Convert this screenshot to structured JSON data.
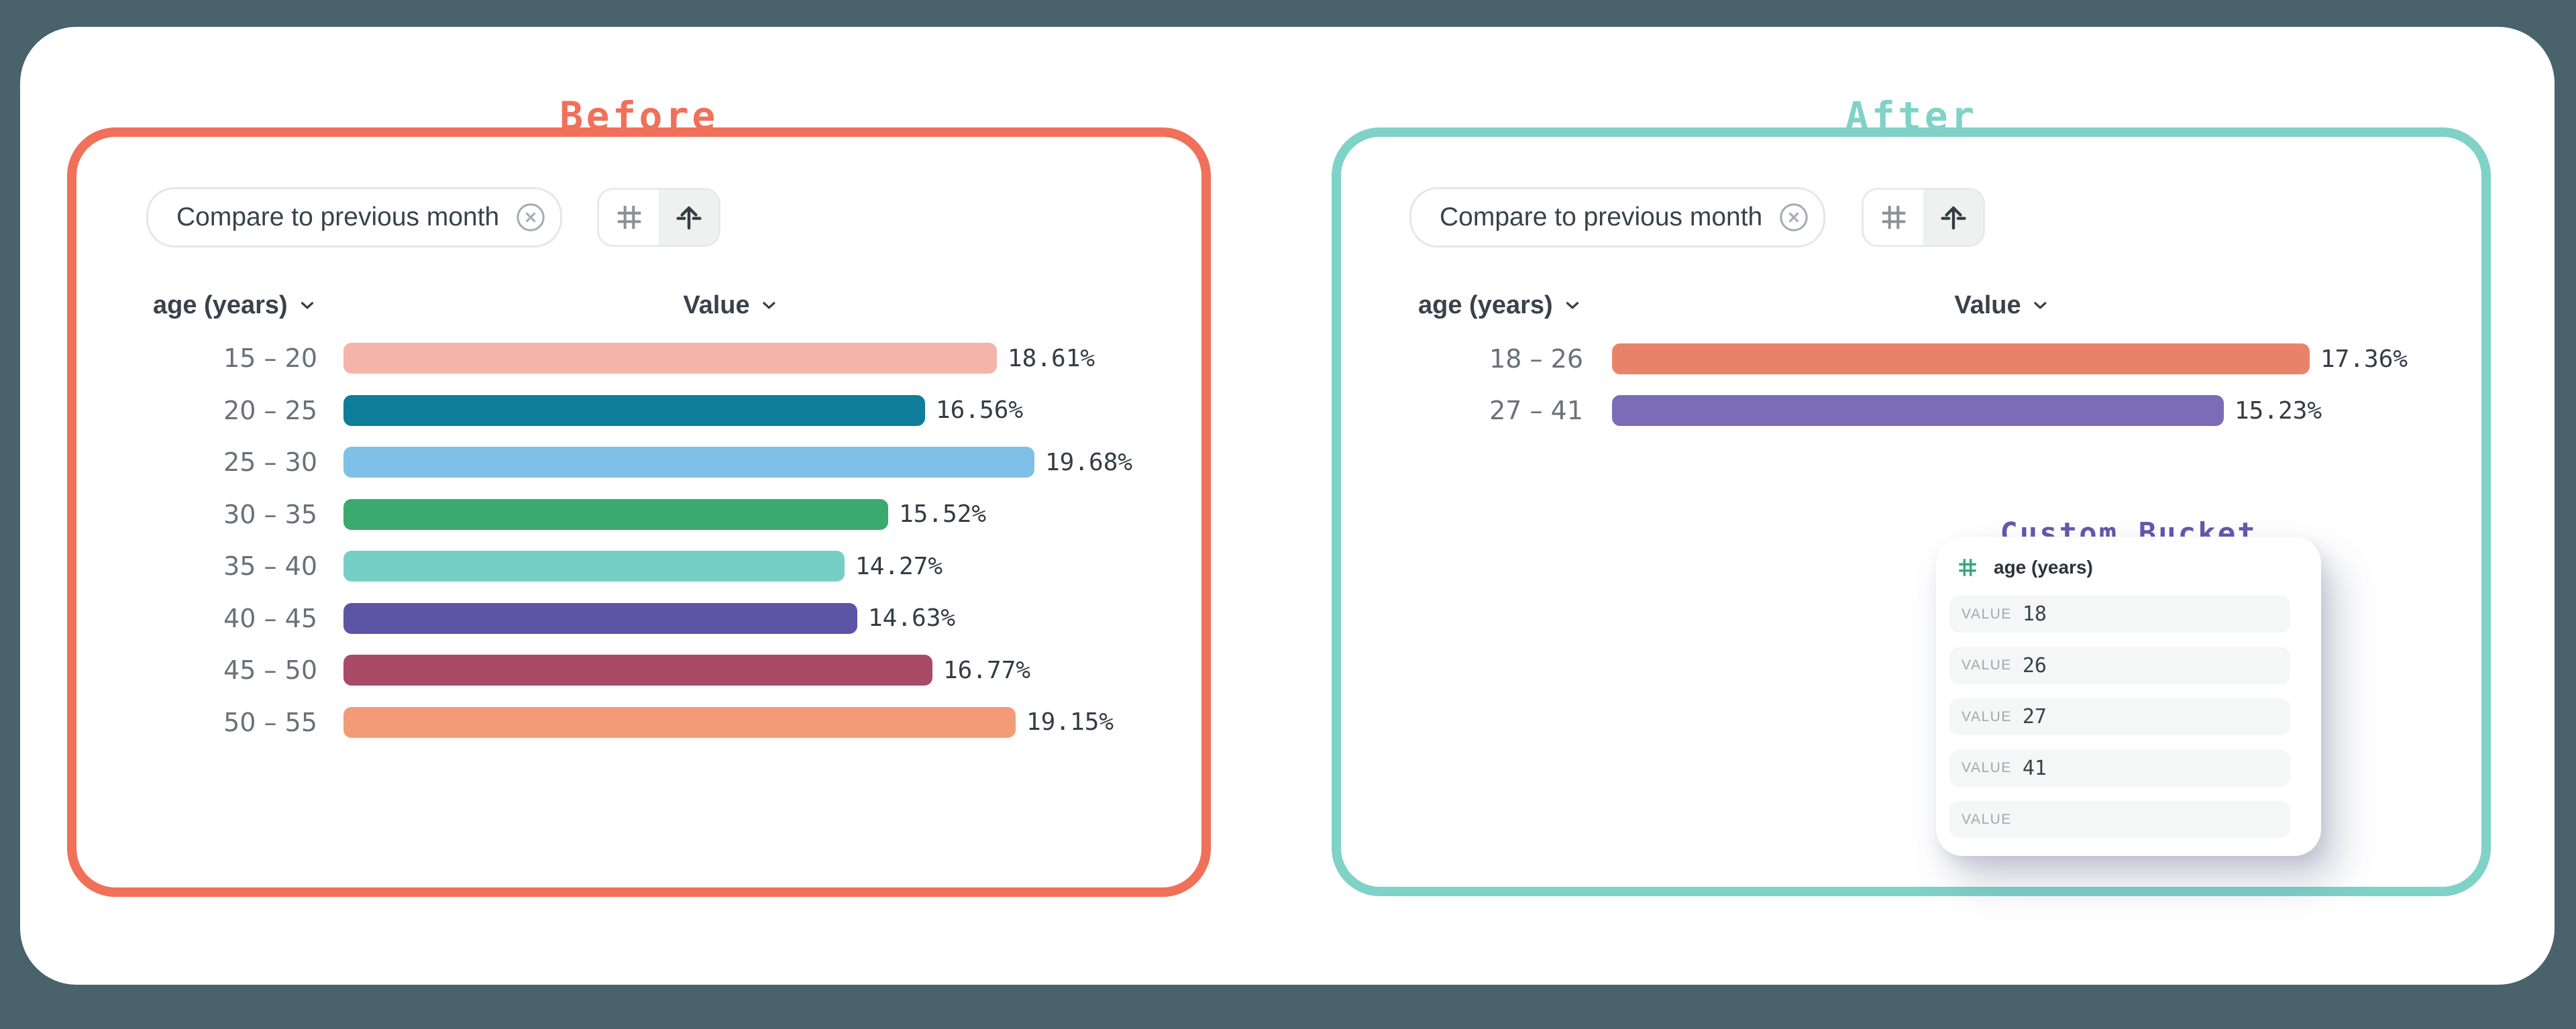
{
  "page": {
    "background_color": "#49626B",
    "card_color": "#FFFFFF"
  },
  "before": {
    "title": "Before",
    "accent_color": "#F0705A",
    "chip": {
      "label": "Compare to previous month",
      "remove_icon": "circle-x-icon"
    },
    "toolbar": {
      "left_icon": "hash-icon",
      "right_icon": "arrow-up-bar-icon",
      "active_button": "right"
    },
    "dimension_header": "age (years)",
    "measure_header": "Value",
    "rows": [
      {
        "label": "15 – 20",
        "value": "18.61%",
        "pct": 18.61,
        "color": "#F5B4A9"
      },
      {
        "label": "20 – 25",
        "value": "16.56%",
        "pct": 16.56,
        "color": "#0E7D99"
      },
      {
        "label": "25 – 30",
        "value": "19.68%",
        "pct": 19.68,
        "color": "#7FC0E8"
      },
      {
        "label": "30 – 35",
        "value": "15.52%",
        "pct": 15.52,
        "color": "#3CA96F"
      },
      {
        "label": "35 – 40",
        "value": "14.27%",
        "pct": 14.27,
        "color": "#76CFC5"
      },
      {
        "label": "40 – 45",
        "value": "14.63%",
        "pct": 14.63,
        "color": "#5C55A5"
      },
      {
        "label": "45 – 50",
        "value": "16.77%",
        "pct": 16.77,
        "color": "#A94A67"
      },
      {
        "label": "50 – 55",
        "value": "19.15%",
        "pct": 19.15,
        "color": "#F39B77"
      }
    ]
  },
  "after": {
    "title": "After",
    "accent_color": "#7FD2C8",
    "chip": {
      "label": "Compare to previous month",
      "remove_icon": "circle-x-icon"
    },
    "toolbar": {
      "left_icon": "hash-icon",
      "right_icon": "arrow-up-bar-icon",
      "active_button": "right"
    },
    "dimension_header": "age (years)",
    "measure_header": "Value",
    "rows": [
      {
        "label": "18 – 26",
        "value": "17.36%",
        "pct": 17.36,
        "color": "#E8836A"
      },
      {
        "label": "27 – 41",
        "value": "15.23%",
        "pct": 15.23,
        "color": "#7A6CB7"
      }
    ],
    "custom_bucket": {
      "title": "Custom Bucket",
      "title_color": "#6458AD",
      "field_icon": "hash-icon",
      "field_icon_color": "#35A67E",
      "field": "age (years)",
      "rows": [
        {
          "label": "VALUE",
          "value": "18"
        },
        {
          "label": "VALUE",
          "value": "26"
        },
        {
          "label": "VALUE",
          "value": "27"
        },
        {
          "label": "VALUE",
          "value": "41"
        },
        {
          "label": "VALUE",
          "value": ""
        }
      ]
    }
  },
  "chart_data": [
    {
      "type": "bar",
      "orientation": "horizontal",
      "title": "Before",
      "categories": [
        "15 – 20",
        "20 – 25",
        "25 – 30",
        "30 – 35",
        "35 – 40",
        "40 – 45",
        "45 – 50",
        "50 – 55"
      ],
      "values": [
        18.61,
        16.56,
        19.68,
        15.52,
        14.27,
        14.63,
        16.77,
        19.15
      ],
      "unit": "%",
      "xlabel": "Value",
      "ylabel": "age (years)",
      "colors": [
        "#F5B4A9",
        "#0E7D99",
        "#7FC0E8",
        "#3CA96F",
        "#76CFC5",
        "#5C55A5",
        "#A94A67",
        "#F39B77"
      ],
      "grid": false,
      "legend": false
    },
    {
      "type": "bar",
      "orientation": "horizontal",
      "title": "After",
      "categories": [
        "18 – 26",
        "27 – 41"
      ],
      "values": [
        17.36,
        15.23
      ],
      "unit": "%",
      "xlabel": "Value",
      "ylabel": "age (years)",
      "colors": [
        "#E8836A",
        "#7A6CB7"
      ],
      "grid": false,
      "legend": false,
      "custom_bucket_values": [
        18,
        26,
        27,
        41
      ]
    }
  ]
}
